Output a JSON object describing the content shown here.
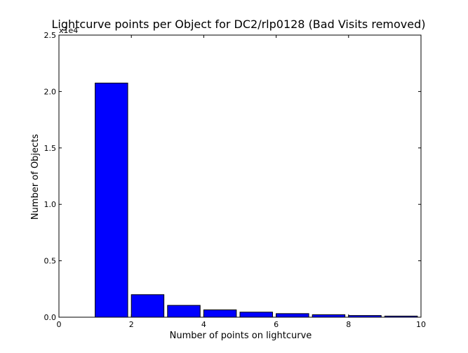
{
  "chart_data": {
    "type": "bar",
    "title": "Lightcurve points per Object for DC2/rlp0128 (Bad Visits removed)",
    "xlabel": "Number of points on lightcurve",
    "ylabel": "Number of Objects",
    "offset_text": "x1e4",
    "xlim": [
      0,
      10
    ],
    "ylim": [
      0,
      25000
    ],
    "x_ticks": [
      0,
      2,
      4,
      6,
      8,
      10
    ],
    "x_tick_labels": [
      "0",
      "2",
      "4",
      "6",
      "8",
      "10"
    ],
    "y_ticks": [
      0,
      5000,
      10000,
      15000,
      20000,
      25000
    ],
    "y_tick_labels": [
      "0.0",
      "0.5",
      "1.0",
      "1.5",
      "2.0",
      "2.5"
    ],
    "bar_width": 0.9,
    "bars": [
      {
        "x": 1,
        "value": 20750
      },
      {
        "x": 2,
        "value": 2000
      },
      {
        "x": 3,
        "value": 1050
      },
      {
        "x": 4,
        "value": 650
      },
      {
        "x": 5,
        "value": 450
      },
      {
        "x": 6,
        "value": 320
      },
      {
        "x": 7,
        "value": 220
      },
      {
        "x": 8,
        "value": 150
      },
      {
        "x": 9,
        "value": 100
      }
    ],
    "bar_color": "#0000ff",
    "edge_color": "#000000",
    "grid": false,
    "legend": "none"
  }
}
